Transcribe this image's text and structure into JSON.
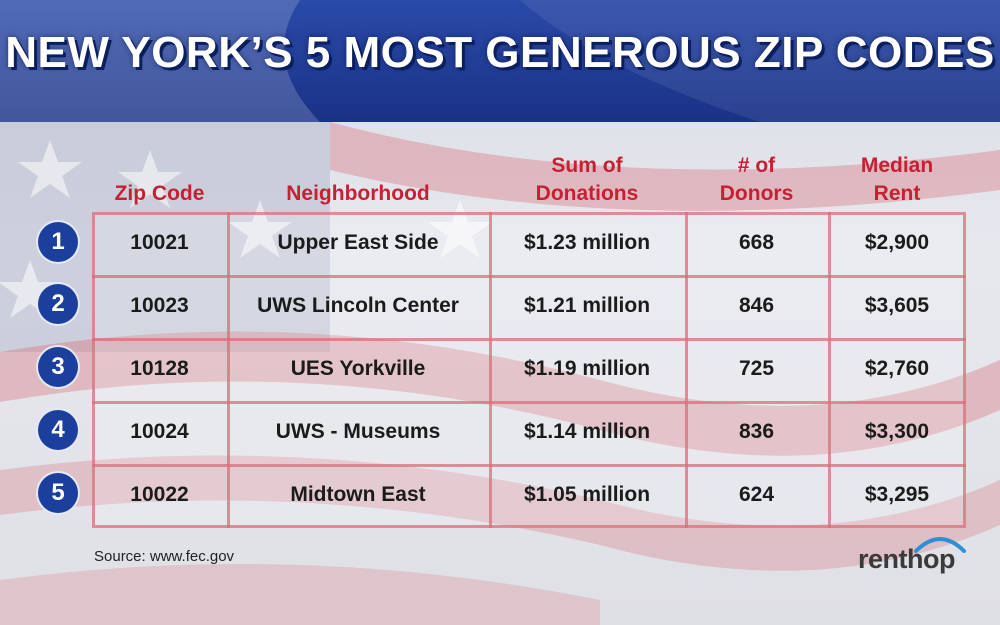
{
  "title": "NEW YORK’S 5 MOST GENEROUS ZIP CODES",
  "headers": {
    "zip": "Zip Code",
    "neighborhood": "Neighborhood",
    "sum_line1": "Sum of",
    "sum_line2": "Donations",
    "donors_line1": "# of",
    "donors_line2": "Donors",
    "rent_line1": "Median",
    "rent_line2": "Rent"
  },
  "rows": [
    {
      "rank": "1",
      "zip": "10021",
      "neighborhood": "Upper East Side",
      "sum": "$1.23 million",
      "donors": "668",
      "rent": "$2,900"
    },
    {
      "rank": "2",
      "zip": "10023",
      "neighborhood": "UWS Lincoln Center",
      "sum": "$1.21 million",
      "donors": "846",
      "rent": "$3,605"
    },
    {
      "rank": "3",
      "zip": "10128",
      "neighborhood": "UES Yorkville",
      "sum": "$1.19 million",
      "donors": "725",
      "rent": "$2,760"
    },
    {
      "rank": "4",
      "zip": "10024",
      "neighborhood": "UWS - Museums",
      "sum": "$1.14 million",
      "donors": "836",
      "rent": "$3,300"
    },
    {
      "rank": "5",
      "zip": "10022",
      "neighborhood": "Midtown East",
      "sum": "$1.05 million",
      "donors": "624",
      "rent": "$3,295"
    }
  ],
  "source": "Source: www.fec.gov",
  "logo": "renthop",
  "colors": {
    "header_red": "#c62033",
    "badge_blue": "#1c3f9e",
    "banner_blue": "#1e3a8a",
    "grid_line": "#d66f7a"
  }
}
